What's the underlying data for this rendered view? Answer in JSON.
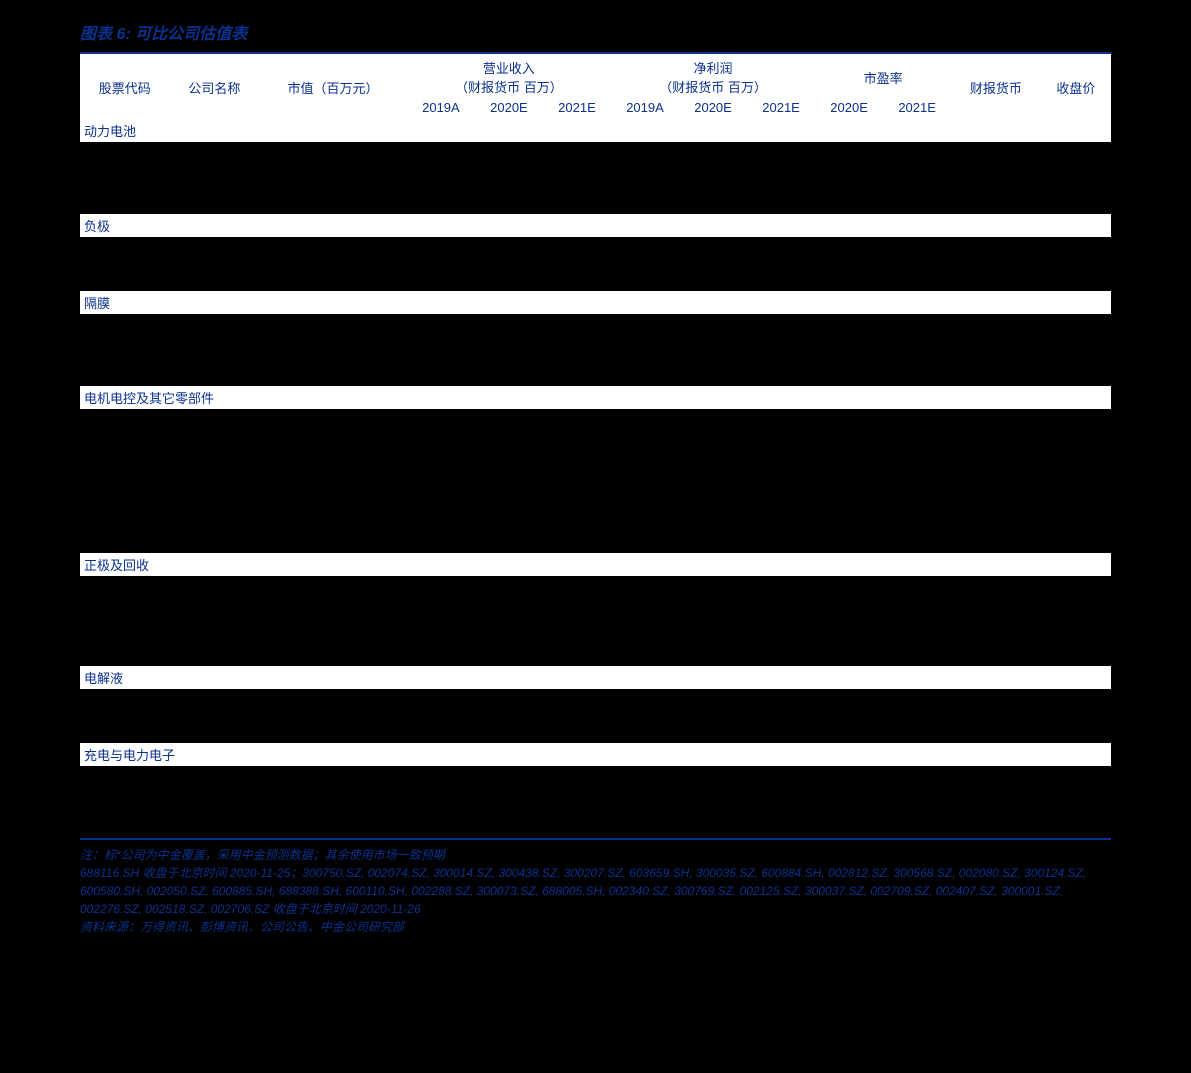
{
  "title_color": "#0b318f",
  "bg_color": "#000000",
  "title": "图表 6: 可比公司估值表",
  "headers": {
    "code": "股票代码",
    "name": "公司名称",
    "mktcap": "市值（百万元）",
    "revenue": "营业收入",
    "revenue_sub": "（财报货币 百万）",
    "profit": "净利润",
    "profit_sub": "（财报货币 百万）",
    "pe": "市盈率",
    "currency": "财报货币",
    "close": "收盘价",
    "y2019a": "2019A",
    "y2020e": "2020E",
    "y2021e": "2021E"
  },
  "sections": [
    {
      "label": "动力电池",
      "rows": 4
    },
    {
      "label": "负极",
      "rows": 3
    },
    {
      "label": "隔膜",
      "rows": 4
    },
    {
      "label": "电机电控及其它零部件",
      "rows": 8
    },
    {
      "label": "正极及回收",
      "rows": 5
    },
    {
      "label": "电解液",
      "rows": 3
    },
    {
      "label": "充电与电力电子",
      "rows": 4
    }
  ],
  "notes": {
    "n1": "注：标*公司为中金覆盖，采用中金预测数据；其余使用市场一致预期",
    "n2": "688116.SH 收盘于北京时间 2020-11-25；300750.SZ, 002074.SZ, 300014.SZ, 300438.SZ, 300207.SZ, 603659.SH, 300035.SZ, 600884.SH, 002812.SZ, 300568.SZ, 002080.SZ, 300124.SZ, 600580.SH, 002050.SZ, 600885.SH, 688388.SH, 600110.SH, 002288.SZ, 300073.SZ, 688005.SH, 002340.SZ, 300769.SZ, 002125.SZ, 300037.SZ, 002709.SZ, 002407.SZ, 300001.SZ, 002276.SZ, 002518.SZ, 002706.SZ 收盘于北京时间 2020-11-26",
    "n3": "资料来源：万得资讯、彭博资讯、公司公告、中金公司研究部"
  }
}
